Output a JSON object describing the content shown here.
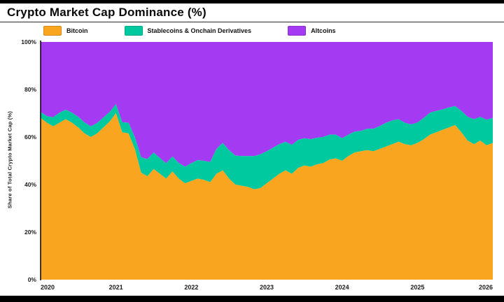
{
  "header": {
    "title": "Crypto Market Cap Dominance (%)"
  },
  "legend": {
    "items": [
      {
        "label": "Bitcoin",
        "color": "#F9A51F"
      },
      {
        "label": "Stablecoins & Onchain Derivatives",
        "color": "#00C9A0"
      },
      {
        "label": "Altcoins",
        "color": "#A43BF2"
      }
    ]
  },
  "axis": {
    "ylabel": "Share of Total Crypto Market Cap (%)",
    "yticks": [
      "0%",
      "20%",
      "40%",
      "60%",
      "80%",
      "100%"
    ],
    "xticks": [
      "2020",
      "2021",
      "2022",
      "2023",
      "2024",
      "2025",
      "2026"
    ]
  },
  "chart_data": {
    "type": "area",
    "stacked": true,
    "title": "Crypto Market Cap Dominance (%)",
    "xlabel": "",
    "ylabel": "Share of Total Crypto Market Cap (%)",
    "ylim": [
      0,
      100
    ],
    "xlim": [
      2020,
      2026
    ],
    "legend_position": "top",
    "grid": false,
    "x_start": 2020,
    "points_per_year": 12,
    "series": [
      {
        "name": "Bitcoin",
        "color": "#F9A51F",
        "values": [
          68,
          66,
          64.5,
          66,
          67.5,
          66,
          64,
          61.5,
          60,
          61.5,
          64,
          66.5,
          70,
          62,
          61.5,
          55,
          45,
          43.5,
          46.5,
          44.5,
          42.5,
          45.5,
          42.5,
          40.5,
          41.5,
          42.5,
          42,
          41,
          44.5,
          46,
          42.5,
          40,
          39.5,
          39,
          38,
          38.5,
          40.5,
          42.5,
          44.5,
          46,
          44.5,
          47,
          48,
          47.5,
          48.5,
          49,
          50.5,
          51,
          50,
          52,
          53.5,
          54,
          54.5,
          54,
          55,
          56,
          57,
          58,
          57,
          56.5,
          57.5,
          59,
          61,
          62,
          63,
          64,
          65,
          62,
          58.5,
          57,
          58.5,
          56.5,
          57.5
        ]
      },
      {
        "name": "Stablecoins & Onchain Derivatives",
        "color": "#00C9A0",
        "values": [
          2.5,
          2.8,
          3.8,
          4.2,
          4,
          4.2,
          4.5,
          4.6,
          4.5,
          4.4,
          4.2,
          4,
          3.8,
          4.2,
          4.5,
          5,
          6.5,
          7.2,
          7,
          6.6,
          6.5,
          6.3,
          6.6,
          7,
          7.5,
          7.8,
          8,
          8.5,
          10.5,
          11.5,
          12,
          12.2,
          12.5,
          13,
          14,
          14.2,
          13.5,
          13,
          12.5,
          12,
          12.2,
          11.8,
          11.5,
          11.6,
          11.2,
          11,
          10.5,
          10,
          9.5,
          9,
          8.8,
          8.6,
          9,
          9.5,
          9.6,
          10,
          10,
          9.5,
          9,
          8.8,
          8.6,
          9,
          9.2,
          9,
          8.6,
          8.4,
          8,
          9,
          10,
          10.5,
          10,
          10.8,
          10.5
        ]
      },
      {
        "name": "Altcoins",
        "color": "#A43BF2",
        "values": [
          29.5,
          31.2,
          31.7,
          29.8,
          28.5,
          29.8,
          31.5,
          33.9,
          35.5,
          34.1,
          31.8,
          29.5,
          26.2,
          33.8,
          34,
          40,
          48.5,
          49.3,
          46.5,
          48.9,
          51,
          48.2,
          50.9,
          52.5,
          51,
          49.7,
          50,
          50.5,
          45,
          42.5,
          45.5,
          47.8,
          48,
          48,
          48,
          47.3,
          46,
          44.5,
          43,
          42,
          43.3,
          41.2,
          40.5,
          40.9,
          40.3,
          40,
          39,
          39,
          40.5,
          39,
          37.7,
          37.4,
          36.5,
          36.5,
          35.4,
          34,
          33,
          32.5,
          34,
          34.7,
          33.9,
          32,
          29.8,
          29,
          28.4,
          27.6,
          27,
          29,
          31.5,
          32.5,
          31.5,
          32.7,
          32
        ]
      }
    ]
  }
}
